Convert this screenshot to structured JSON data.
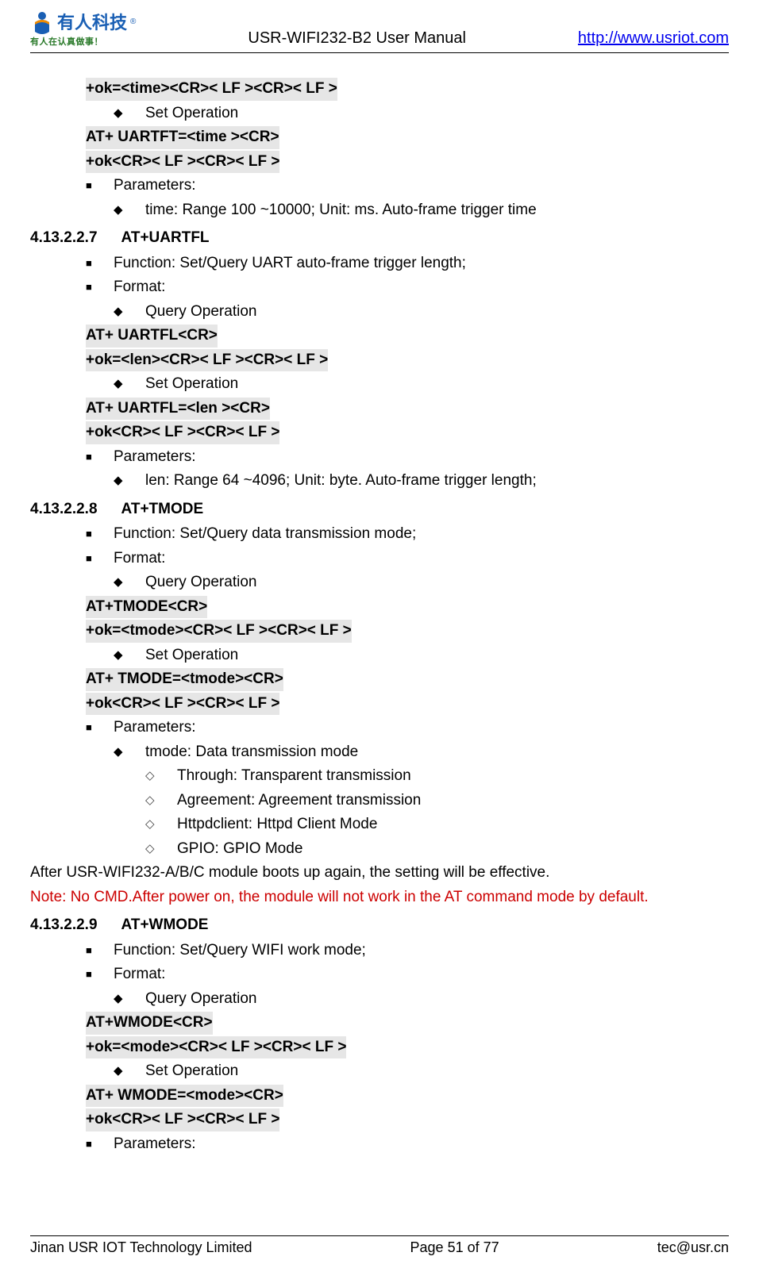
{
  "header": {
    "logo_cn": "有人科技",
    "logo_tag": "有人在认真做事！",
    "title": "USR-WIFI232-B2 User Manual",
    "link_text": "http://www.usriot.com",
    "link_href": "http://www.usriot.com"
  },
  "footer": {
    "left": "Jinan USR IOT Technology Limited",
    "center": "Page 51 of 77",
    "right": "tec@usr.cn"
  },
  "colors": {
    "highlight_bg": "#e6e6e6",
    "link": "#0000ee",
    "note_red": "#cc0000",
    "logo_blue": "#1a5fb4",
    "logo_green": "#2a7a2a"
  },
  "body": [
    {
      "t": "code",
      "pad": 1,
      "bold": true,
      "text": "+ok=<time><CR>< LF ><CR>< LF >"
    },
    {
      "t": "di",
      "pad": 2,
      "text": "Set Operation"
    },
    {
      "t": "code",
      "pad": 1,
      "bold": true,
      "text": "AT+ UARTFT=<time ><CR>"
    },
    {
      "t": "code",
      "pad": 1,
      "bold": true,
      "text": "+ok<CR>< LF ><CR>< LF >"
    },
    {
      "t": "sq",
      "pad": 1,
      "text": "Parameters:"
    },
    {
      "t": "di",
      "pad": 2,
      "text": "time: Range 100 ~10000; Unit: ms. Auto-frame trigger time"
    },
    {
      "t": "sect",
      "num": "4.13.2.2.7",
      "title": "AT+UARTFL"
    },
    {
      "t": "sq",
      "pad": 1,
      "text": "Function: Set/Query UART auto-frame trigger length;"
    },
    {
      "t": "sq",
      "pad": 1,
      "text": "Format:"
    },
    {
      "t": "di",
      "pad": 2,
      "text": "Query Operation"
    },
    {
      "t": "code",
      "pad": 1,
      "bold": true,
      "text": "AT+ UARTFL<CR>"
    },
    {
      "t": "code",
      "pad": 1,
      "bold": true,
      "text": "+ok=<len><CR>< LF ><CR>< LF >"
    },
    {
      "t": "di",
      "pad": 2,
      "text": "Set Operation"
    },
    {
      "t": "code",
      "pad": 1,
      "bold": true,
      "text": "AT+ UARTFL=<len ><CR>"
    },
    {
      "t": "code",
      "pad": 1,
      "bold": true,
      "text": "+ok<CR>< LF ><CR>< LF >"
    },
    {
      "t": "sq",
      "pad": 1,
      "text": "Parameters:"
    },
    {
      "t": "di",
      "pad": 2,
      "text": "len: Range 64 ~4096; Unit: byte. Auto-frame trigger length;"
    },
    {
      "t": "sect",
      "num": "4.13.2.2.8",
      "title": "AT+TMODE"
    },
    {
      "t": "sq",
      "pad": 1,
      "text": "Function: Set/Query data transmission mode;"
    },
    {
      "t": "sq",
      "pad": 1,
      "text": "Format:"
    },
    {
      "t": "di",
      "pad": 2,
      "text": "Query Operation"
    },
    {
      "t": "code",
      "pad": 1,
      "bold": true,
      "text": "AT+TMODE<CR>"
    },
    {
      "t": "code",
      "pad": 1,
      "bold": true,
      "text": "+ok=<tmode><CR>< LF ><CR>< LF >"
    },
    {
      "t": "di",
      "pad": 2,
      "text": "Set Operation"
    },
    {
      "t": "code",
      "pad": 1,
      "bold": true,
      "text": "AT+ TMODE=<tmode><CR>"
    },
    {
      "t": "code",
      "pad": 1,
      "bold": true,
      "text": "+ok<CR>< LF ><CR>< LF >"
    },
    {
      "t": "sq",
      "pad": 1,
      "text": "Parameters:"
    },
    {
      "t": "di",
      "pad": 2,
      "text": "tmode: Data transmission mode"
    },
    {
      "t": "ho",
      "pad": 3,
      "text": "Through: Transparent transmission"
    },
    {
      "t": "ho",
      "pad": 3,
      "text": "Agreement: Agreement transmission"
    },
    {
      "t": "ho",
      "pad": 3,
      "text": "Httpdclient: Httpd Client Mode"
    },
    {
      "t": "ho",
      "pad": 3,
      "text": "GPIO: GPIO Mode"
    },
    {
      "t": "plain",
      "pad": 0,
      "text": "After USR-WIFI232-A/B/C module boots up again, the setting will be effective."
    },
    {
      "t": "plain",
      "pad": 0,
      "red": true,
      "text": "Note: No CMD.After power on, the module will not work in the AT command mode by default."
    },
    {
      "t": "sect",
      "num": "4.13.2.2.9",
      "title": "AT+WMODE"
    },
    {
      "t": "sq",
      "pad": 1,
      "text": "Function: Set/Query WIFI work mode;"
    },
    {
      "t": "sq",
      "pad": 1,
      "text": "Format:"
    },
    {
      "t": "di",
      "pad": 2,
      "text": "Query Operation"
    },
    {
      "t": "code",
      "pad": 1,
      "bold": true,
      "text": "AT+WMODE<CR>"
    },
    {
      "t": "code",
      "pad": 1,
      "bold": true,
      "text": "+ok=<mode><CR>< LF ><CR>< LF >"
    },
    {
      "t": "di",
      "pad": 2,
      "text": "Set Operation"
    },
    {
      "t": "code",
      "pad": 1,
      "bold": true,
      "text": "AT+ WMODE=<mode><CR>"
    },
    {
      "t": "code",
      "pad": 1,
      "bold": true,
      "text": "+ok<CR>< LF ><CR>< LF >"
    },
    {
      "t": "sq",
      "pad": 1,
      "text": "Parameters:"
    }
  ]
}
